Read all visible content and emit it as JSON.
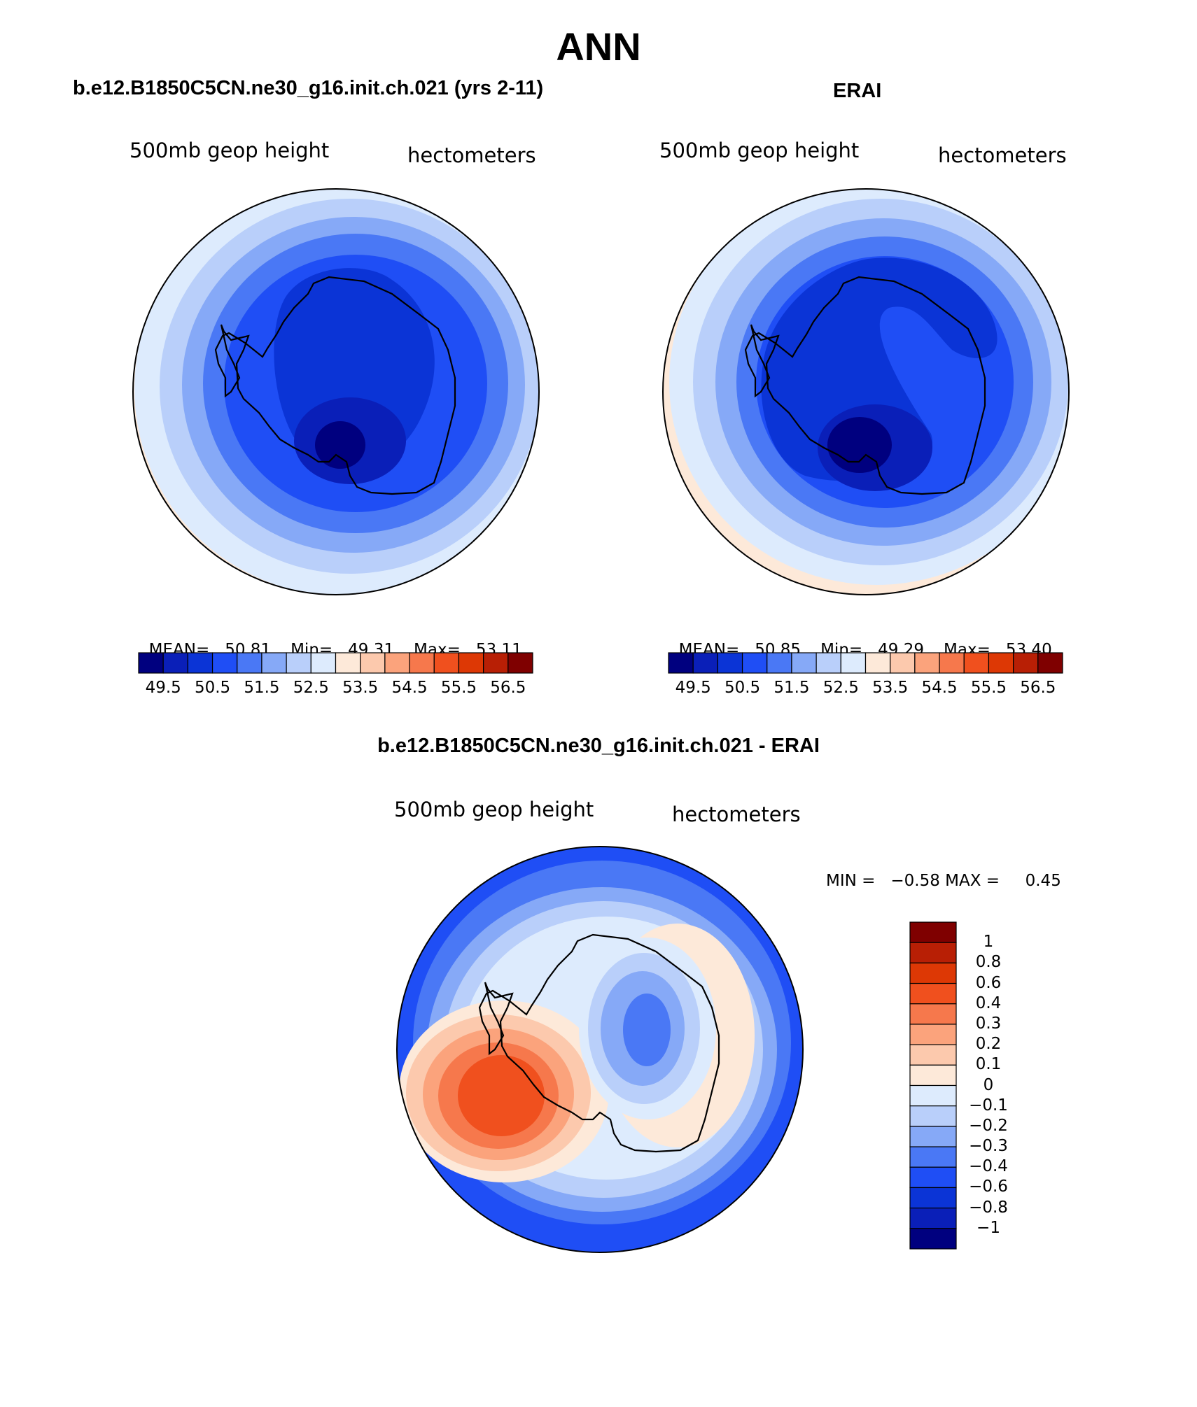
{
  "page_title": "ANN",
  "panels": [
    {
      "title": "b.e12.B1850C5CN.ne30_g16.init.ch.021 (yrs 2-11)",
      "left_label": "500mb geop height",
      "right_label": "hectometers",
      "stats": {
        "mean_label": "MEAN=",
        "mean": "50.81",
        "min_label": "Min=",
        "min": "49.31",
        "max_label": "Max=",
        "max": "53.11"
      }
    },
    {
      "title": "ERAI",
      "left_label": "500mb geop height",
      "right_label": "hectometers",
      "stats": {
        "mean_label": "MEAN=",
        "mean": "50.85",
        "min_label": "Min=",
        "min": "49.29",
        "max_label": "Max=",
        "max": "53.40"
      }
    }
  ],
  "diff_panel": {
    "title": "b.e12.B1850C5CN.ne30_g16.init.ch.021 - ERAI",
    "left_label": "500mb geop height",
    "right_label": "hectometers",
    "minmax": "MIN =   −0.58 MAX =     0.45"
  },
  "horizontal_colorbar": {
    "labels": [
      "49.5",
      "50.5",
      "51.5",
      "52.5",
      "53.5",
      "54.5",
      "55.5",
      "56.5"
    ],
    "colors": [
      "#00007f",
      "#0a1fb8",
      "#0b34d6",
      "#1f4ef5",
      "#4a78f5",
      "#86a9f7",
      "#b9cffa",
      "#ddebfd",
      "#fde9d9",
      "#fcc9ad",
      "#fba37c",
      "#f6784c",
      "#f0501e",
      "#dd3805",
      "#b81f05",
      "#7f0000"
    ]
  },
  "vertical_colorbar": {
    "labels": [
      "1",
      "0.8",
      "0.6",
      "0.4",
      "0.3",
      "0.2",
      "0.1",
      "0",
      "−0.1",
      "−0.2",
      "−0.3",
      "−0.4",
      "−0.6",
      "−0.8",
      "−1"
    ],
    "colors": [
      "#7f0000",
      "#b81f05",
      "#dd3805",
      "#f0501e",
      "#f6784c",
      "#fba37c",
      "#fcc9ad",
      "#fde9d9",
      "#ddebfd",
      "#b9cffa",
      "#86a9f7",
      "#4a78f5",
      "#1f4ef5",
      "#0b34d6",
      "#0a1fb8",
      "#00007f"
    ]
  }
}
